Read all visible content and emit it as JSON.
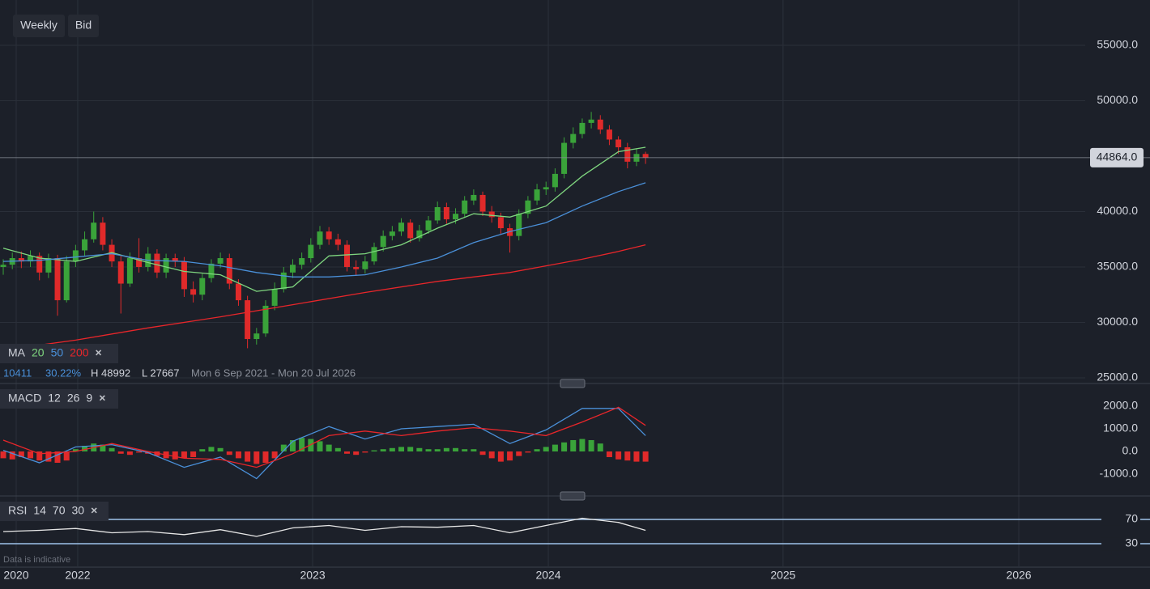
{
  "toolbar": {
    "interval": "Weekly",
    "price_side": "Bid"
  },
  "footnote": "Data is indicative",
  "info": {
    "change": "10411",
    "change_pct": "30.22%",
    "high": "H 48992",
    "low": "L 27667",
    "range": "Mon 6 Sep 2021 - Mon 20 Jul 2026"
  },
  "chart_data": [
    {
      "type": "candlestick",
      "legend_label": "MA",
      "up_color": "#3aa33a",
      "down_color": "#e02a2a",
      "open": [
        35000,
        35200,
        35800,
        35500,
        36000,
        34500,
        35800,
        32000,
        35500,
        36500,
        37500,
        39000,
        37000,
        35500,
        33500,
        35800,
        35000,
        36200,
        34500,
        35800,
        35500,
        33000,
        32500,
        34000,
        35300,
        35800,
        33500,
        32000,
        28500,
        29000,
        31500,
        33000,
        34500,
        35200,
        35800,
        37000,
        38200,
        37500,
        37000,
        35000,
        34800,
        35500,
        36800,
        37800,
        38200,
        39000,
        37600,
        38300,
        39200,
        40400,
        39300,
        39800,
        41000,
        41500,
        40000,
        39500,
        38500,
        37800,
        39800,
        41000,
        42000,
        42200,
        43400,
        46200,
        47000,
        48000,
        48300,
        47400,
        46500,
        45800,
        44500,
        45200
      ],
      "high": [
        35700,
        36300,
        36400,
        36500,
        36300,
        36200,
        36100,
        36000,
        37000,
        38200,
        40000,
        39500,
        37500,
        36000,
        36300,
        37600,
        36800,
        36600,
        36200,
        36200,
        35900,
        33700,
        34400,
        35700,
        36300,
        36200,
        33900,
        32400,
        29500,
        32000,
        33600,
        35000,
        35700,
        36300,
        37600,
        38700,
        38600,
        38000,
        37400,
        35600,
        36000,
        37200,
        38300,
        38700,
        39400,
        39300,
        38800,
        39600,
        40900,
        40800,
        40300,
        41400,
        42000,
        41800,
        40500,
        39900,
        38900,
        40200,
        41400,
        42500,
        42700,
        43900,
        46700,
        47600,
        48400,
        48992,
        48700,
        47800,
        46800,
        46200,
        45700,
        45400
      ],
      "low": [
        34300,
        34800,
        34900,
        35000,
        33800,
        34000,
        30600,
        31800,
        35000,
        36000,
        37200,
        36500,
        35000,
        30800,
        33200,
        34500,
        34600,
        34000,
        34000,
        35000,
        32300,
        31800,
        32000,
        33600,
        34900,
        33000,
        31500,
        27667,
        28000,
        28700,
        31100,
        32700,
        34000,
        34800,
        35400,
        36600,
        37000,
        36500,
        34600,
        34200,
        34400,
        35200,
        36400,
        37400,
        37800,
        37200,
        37300,
        38000,
        38900,
        38900,
        38900,
        39500,
        40600,
        39600,
        39000,
        38000,
        36300,
        37400,
        39400,
        40600,
        41500,
        41800,
        43000,
        45700,
        46600,
        47500,
        47000,
        46000,
        45200,
        43900,
        44100,
        44300
      ],
      "close": [
        35200,
        35800,
        35500,
        36000,
        34500,
        35800,
        32000,
        35500,
        36500,
        37500,
        39000,
        37000,
        35500,
        33500,
        35800,
        35000,
        36200,
        34500,
        35800,
        35500,
        33000,
        32500,
        34000,
        35300,
        35800,
        33500,
        32000,
        28500,
        29000,
        31500,
        33000,
        34500,
        35200,
        35800,
        37000,
        38200,
        37500,
        37000,
        35000,
        34800,
        35500,
        36800,
        37800,
        38200,
        39000,
        37600,
        38300,
        39200,
        40400,
        39300,
        39800,
        41000,
        41500,
        40000,
        39500,
        38500,
        37800,
        39800,
        41000,
        42000,
        42200,
        43400,
        46200,
        47000,
        48000,
        48300,
        47400,
        46500,
        45800,
        44500,
        45200,
        44864
      ],
      "overlays": [
        {
          "name": "20",
          "color": "#7fd67f",
          "x": [
            0,
            4,
            8,
            12,
            16,
            20,
            24,
            28,
            32,
            36,
            40,
            44,
            48,
            52,
            56,
            60,
            64,
            68,
            71
          ],
          "values": [
            36700,
            35800,
            35500,
            36300,
            35400,
            34600,
            34300,
            32800,
            33200,
            36000,
            36200,
            37000,
            38500,
            39800,
            39500,
            40500,
            43200,
            45400,
            45800
          ]
        },
        {
          "name": "50",
          "color": "#4a90d9",
          "x": [
            0,
            4,
            8,
            12,
            16,
            20,
            24,
            28,
            32,
            36,
            40,
            44,
            48,
            52,
            56,
            60,
            64,
            68,
            71
          ],
          "values": [
            35500,
            35600,
            35900,
            36200,
            35600,
            35500,
            35100,
            34500,
            34100,
            34100,
            34300,
            35000,
            35800,
            37200,
            38200,
            39000,
            40500,
            41800,
            42600
          ]
        },
        {
          "name": "200",
          "color": "#e8262a",
          "x": [
            0,
            8,
            16,
            24,
            32,
            40,
            48,
            56,
            60,
            64,
            68,
            71
          ],
          "values": [
            27500,
            28400,
            29500,
            30500,
            31600,
            32700,
            33700,
            34500,
            35100,
            35700,
            36400,
            37000
          ]
        }
      ],
      "xlim": [
        -0.36,
        119.6
      ],
      "xticks": [
        {
          "value": 1.43,
          "label": "2020"
        },
        {
          "value": 8.23,
          "label": "2022"
        },
        {
          "value": 34.2,
          "label": "2023"
        },
        {
          "value": 60.25,
          "label": "2024"
        },
        {
          "value": 86.2,
          "label": "2025"
        },
        {
          "value": 112.26,
          "label": "2026"
        }
      ],
      "ylim": [
        24560,
        59090
      ],
      "yticks": [
        {
          "value": 25000,
          "label": "25000.0"
        },
        {
          "value": 30000,
          "label": "30000.0"
        },
        {
          "value": 35000,
          "label": "35000.0"
        },
        {
          "value": 40000,
          "label": "40000.0"
        },
        {
          "value": 50000,
          "label": "50000.0"
        },
        {
          "value": 55000,
          "label": "55000.0"
        }
      ],
      "last_price": {
        "value": 44864,
        "label": "44864.0"
      },
      "grid": true
    },
    {
      "type": "macd",
      "name": "MACD",
      "params": [
        12,
        26,
        9
      ],
      "hist_up": "#3aa33a",
      "hist_down": "#e02a2a",
      "histogram": [
        -300,
        -350,
        -250,
        -300,
        -400,
        -450,
        -500,
        -400,
        100,
        250,
        350,
        300,
        150,
        -100,
        -150,
        -50,
        -100,
        -200,
        -300,
        -350,
        -300,
        -250,
        100,
        200,
        150,
        -150,
        -300,
        -450,
        -550,
        -500,
        -300,
        300,
        500,
        600,
        550,
        450,
        300,
        150,
        -100,
        -150,
        -50,
        50,
        100,
        150,
        200,
        200,
        150,
        100,
        100,
        150,
        150,
        100,
        100,
        -150,
        -300,
        -450,
        -400,
        -200,
        -50,
        100,
        200,
        300,
        400,
        500,
        550,
        500,
        350,
        -250,
        -350,
        -400,
        -450,
        -450
      ],
      "macd": {
        "color": "#4a90d9",
        "x": [
          0,
          4,
          8,
          12,
          16,
          20,
          24,
          28,
          32,
          36,
          40,
          44,
          48,
          52,
          56,
          60,
          64,
          68,
          71
        ],
        "values": [
          50,
          -500,
          200,
          300,
          -50,
          -700,
          -250,
          -1200,
          450,
          1100,
          550,
          1000,
          1100,
          1200,
          350,
          950,
          1900,
          1900,
          700
        ]
      },
      "signal": {
        "color": "#e8262a",
        "x": [
          0,
          4,
          8,
          12,
          16,
          20,
          24,
          28,
          32,
          36,
          40,
          44,
          48,
          52,
          56,
          60,
          64,
          68,
          71
        ],
        "values": [
          500,
          -100,
          0,
          350,
          0,
          -300,
          -350,
          -700,
          -100,
          700,
          900,
          700,
          900,
          1050,
          900,
          700,
          1300,
          1950,
          1150
        ]
      },
      "ylim": [
        -1929,
        2857
      ],
      "yticks": [
        {
          "value": 2000,
          "label": "2000.0"
        },
        {
          "value": 1000,
          "label": "1000.0"
        },
        {
          "value": 0,
          "label": "0.0"
        },
        {
          "value": -1000,
          "label": "-1000.0"
        }
      ]
    },
    {
      "type": "rsi",
      "name": "RSI",
      "period": 14,
      "level_color": "#9ec3ea",
      "line": {
        "color": "#e6e6e6",
        "x": [
          0,
          4,
          8,
          12,
          16,
          20,
          24,
          28,
          32,
          36,
          40,
          44,
          48,
          52,
          56,
          60,
          64,
          68,
          71
        ],
        "values": [
          50,
          52,
          55,
          48,
          50,
          45,
          53,
          42,
          56,
          60,
          52,
          58,
          57,
          60,
          48,
          60,
          72,
          65,
          52
        ]
      },
      "ylim": [
        -7.3,
        99.3
      ],
      "yticks": [
        70,
        30
      ]
    }
  ]
}
